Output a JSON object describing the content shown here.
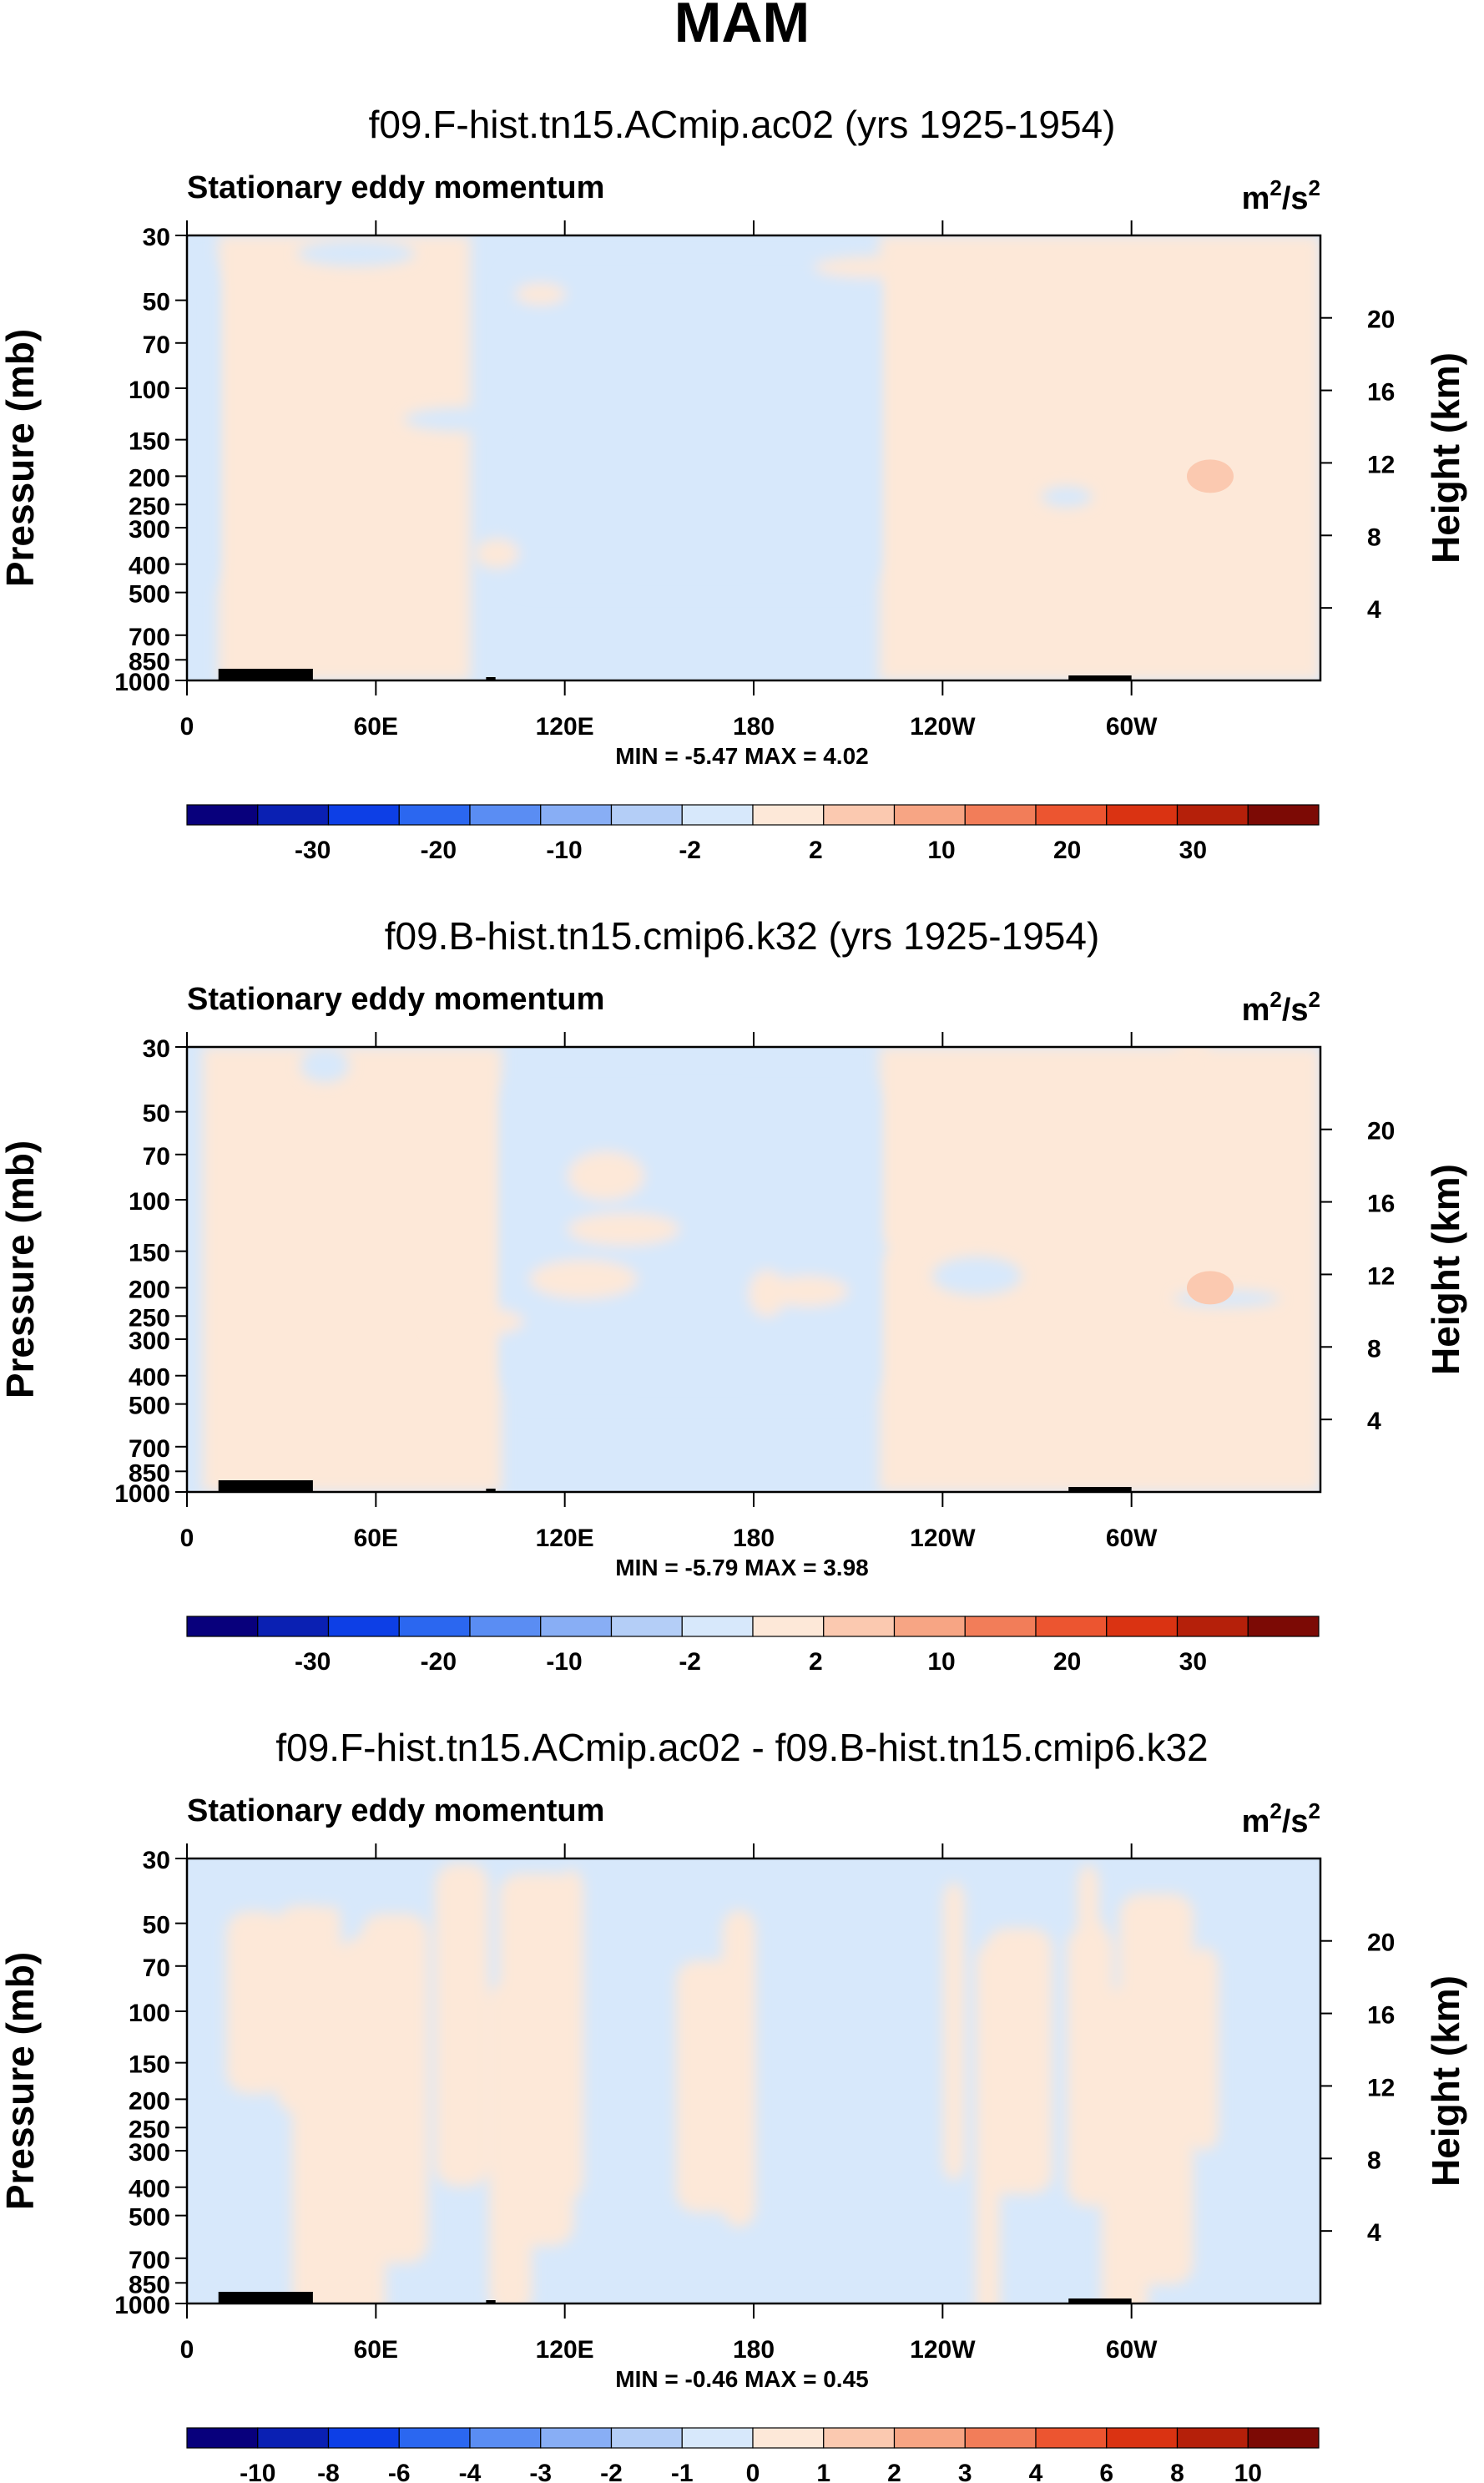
{
  "figure": {
    "title": "MAM"
  },
  "chart_data": [
    {
      "type": "heatmap",
      "title": "f09.F-hist.tn15.ACmip.ac02 (yrs 1925-1954)",
      "subtitle": "Stationary eddy momentum",
      "units": {
        "base": "m",
        "sup1": "2",
        "sep": "/s",
        "sup2": "2"
      },
      "ylabel": "Pressure (mb)",
      "y2label": "Height (km)",
      "xlim": [
        0,
        360
      ],
      "pressure_range": [
        1000,
        30
      ],
      "pressure_ticks": [
        30,
        50,
        70,
        100,
        150,
        200,
        250,
        300,
        400,
        500,
        700,
        850,
        1000
      ],
      "height_ticks": [
        20,
        16,
        12,
        8,
        4
      ],
      "x_ticks": [
        {
          "lon": 0,
          "label": "0"
        },
        {
          "lon": 60,
          "label": "60E"
        },
        {
          "lon": 120,
          "label": "120E"
        },
        {
          "lon": 180,
          "label": "180"
        },
        {
          "lon": 240,
          "label": "120W"
        },
        {
          "lon": 300,
          "label": "60W"
        }
      ],
      "stats": "MIN =  -5.47  MAX =   4.02",
      "colorbar": {
        "levels": [
          "-30",
          "-20",
          "-10",
          "-2",
          "2",
          "10",
          "20",
          "30"
        ],
        "colors": [
          "#08007c",
          "#0a20b3",
          "#0d3fe6",
          "#2b67f0",
          "#5a8df3",
          "#88aef5",
          "#b4cef7",
          "#d7e8fb",
          "#fde8d8",
          "#fbc9b0",
          "#f7a584",
          "#f27d59",
          "#ec5530",
          "#da3312",
          "#b5200a",
          "#7c0a05"
        ]
      },
      "field_summary": {
        "positive_regions_lon": [
          [
            10,
            90
          ],
          [
            220,
            360
          ]
        ],
        "negative_regions_lon": [
          [
            100,
            220
          ],
          [
            0,
            10
          ]
        ],
        "max_region": {
          "lon": 325,
          "pressure_mb": 200,
          "value": 4.02
        }
      }
    },
    {
      "type": "heatmap",
      "title": "f09.B-hist.tn15.cmip6.k32 (yrs 1925-1954)",
      "subtitle": "Stationary eddy momentum",
      "units": {
        "base": "m",
        "sup1": "2",
        "sep": "/s",
        "sup2": "2"
      },
      "ylabel": "Pressure (mb)",
      "y2label": "Height (km)",
      "xlim": [
        0,
        360
      ],
      "pressure_range": [
        1000,
        30
      ],
      "pressure_ticks": [
        30,
        50,
        70,
        100,
        150,
        200,
        250,
        300,
        400,
        500,
        700,
        850,
        1000
      ],
      "height_ticks": [
        20,
        16,
        12,
        8,
        4
      ],
      "x_ticks": [
        {
          "lon": 0,
          "label": "0"
        },
        {
          "lon": 60,
          "label": "60E"
        },
        {
          "lon": 120,
          "label": "120E"
        },
        {
          "lon": 180,
          "label": "180"
        },
        {
          "lon": 240,
          "label": "120W"
        },
        {
          "lon": 300,
          "label": "60W"
        }
      ],
      "stats": "MIN =  -5.79  MAX =   3.98",
      "colorbar": {
        "levels": [
          "-30",
          "-20",
          "-10",
          "-2",
          "2",
          "10",
          "20",
          "30"
        ],
        "colors": [
          "#08007c",
          "#0a20b3",
          "#0d3fe6",
          "#2b67f0",
          "#5a8df3",
          "#88aef5",
          "#b4cef7",
          "#d7e8fb",
          "#fde8d8",
          "#fbc9b0",
          "#f7a584",
          "#f27d59",
          "#ec5530",
          "#da3312",
          "#b5200a",
          "#7c0a05"
        ]
      },
      "field_summary": {
        "positive_regions_lon": [
          [
            5,
            100
          ],
          [
            220,
            360
          ]
        ],
        "negative_regions_lon": [
          [
            100,
            220
          ]
        ],
        "max_region": {
          "lon": 325,
          "pressure_mb": 200,
          "value": 3.98
        }
      }
    },
    {
      "type": "heatmap",
      "title": "f09.F-hist.tn15.ACmip.ac02 - f09.B-hist.tn15.cmip6.k32",
      "subtitle": "Stationary eddy momentum",
      "units": {
        "base": "m",
        "sup1": "2",
        "sep": "/s",
        "sup2": "2"
      },
      "ylabel": "Pressure (mb)",
      "y2label": "Height (km)",
      "xlim": [
        0,
        360
      ],
      "pressure_range": [
        1000,
        30
      ],
      "pressure_ticks": [
        30,
        50,
        70,
        100,
        150,
        200,
        250,
        300,
        400,
        500,
        700,
        850,
        1000
      ],
      "height_ticks": [
        20,
        16,
        12,
        8,
        4
      ],
      "x_ticks": [
        {
          "lon": 0,
          "label": "0"
        },
        {
          "lon": 60,
          "label": "60E"
        },
        {
          "lon": 120,
          "label": "120E"
        },
        {
          "lon": 180,
          "label": "180"
        },
        {
          "lon": 240,
          "label": "120W"
        },
        {
          "lon": 300,
          "label": "60W"
        }
      ],
      "stats": "MIN =  -0.46  MAX =   0.45",
      "colorbar": {
        "levels": [
          "-10",
          "-8",
          "-6",
          "-4",
          "-3",
          "-2",
          "-1",
          "0",
          "1",
          "2",
          "3",
          "4",
          "6",
          "8",
          "10"
        ],
        "colors": [
          "#08007c",
          "#0a20b3",
          "#0d3fe6",
          "#2b67f0",
          "#5a8df3",
          "#88aef5",
          "#b4cef7",
          "#d7e8fb",
          "#fde8d8",
          "#fbc9b0",
          "#f7a584",
          "#f27d59",
          "#ec5530",
          "#da3312",
          "#b5200a",
          "#7c0a05"
        ]
      },
      "field_summary": {
        "positive_regions_lon": [
          [
            0,
            360
          ]
        ],
        "negative_regions_lon": [
          [
            0,
            360
          ]
        ],
        "note": "small-amplitude alternating bands between -1 and 1"
      }
    }
  ]
}
